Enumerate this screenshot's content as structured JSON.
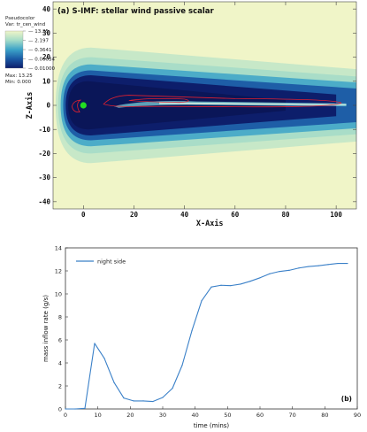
{
  "chart_data": [
    {
      "type": "heatmap",
      "panel_label": "(a) S-IMF: stellar wind passive scalar",
      "xlabel": "X-Axis",
      "ylabel": "Z-Axis",
      "xlim": [
        -12,
        108
      ],
      "ylim": [
        -43,
        43
      ],
      "x_ticks": [
        0,
        20,
        40,
        60,
        80,
        100
      ],
      "y_ticks": [
        -40,
        -30,
        -20,
        -10,
        0,
        10,
        20,
        30,
        40
      ],
      "colorbar": {
        "title_lines": [
          "Pseudocolor",
          "Var: tr_cen_wind"
        ],
        "scale": "log",
        "tick_labels": [
          "13.25",
          "2.197",
          "0.3641",
          "0.06034",
          "0.01000"
        ],
        "max_label": "Max: 13.25",
        "min_label": "Min: 0.000",
        "colors": [
          "#f0f5c8",
          "#a5dcc8",
          "#3ca3c8",
          "#1b5aa5",
          "#0d1e6b"
        ]
      },
      "planet": {
        "x": 0,
        "z": 0,
        "color": "#22dd22"
      },
      "contour_color": "#e02030"
    },
    {
      "type": "line",
      "xlabel": "time (mins)",
      "ylabel": "mass inflow rate (g/s)",
      "panel_label": "(b)",
      "xlim": [
        0,
        90
      ],
      "ylim": [
        0,
        14
      ],
      "x_ticks": [
        0,
        10,
        20,
        30,
        40,
        50,
        60,
        70,
        80,
        90
      ],
      "y_ticks": [
        0,
        2,
        4,
        6,
        8,
        10,
        12,
        14
      ],
      "legend_position": "top-left",
      "series": [
        {
          "name": "night side",
          "color": "#3a80c8",
          "x": [
            0,
            3,
            6,
            9,
            12,
            15,
            18,
            21,
            24,
            27,
            30,
            33,
            36,
            39,
            42,
            45,
            48,
            51,
            54,
            57,
            60,
            63,
            66,
            69,
            72,
            75,
            78,
            81,
            84,
            87
          ],
          "y": [
            0,
            0,
            0.05,
            5.7,
            4.4,
            2.3,
            0.95,
            0.7,
            0.7,
            0.65,
            1.0,
            1.8,
            3.8,
            6.8,
            9.4,
            10.6,
            10.75,
            10.72,
            10.85,
            11.1,
            11.4,
            11.75,
            11.95,
            12.05,
            12.25,
            12.38,
            12.45,
            12.55,
            12.65,
            12.65
          ]
        }
      ]
    }
  ]
}
